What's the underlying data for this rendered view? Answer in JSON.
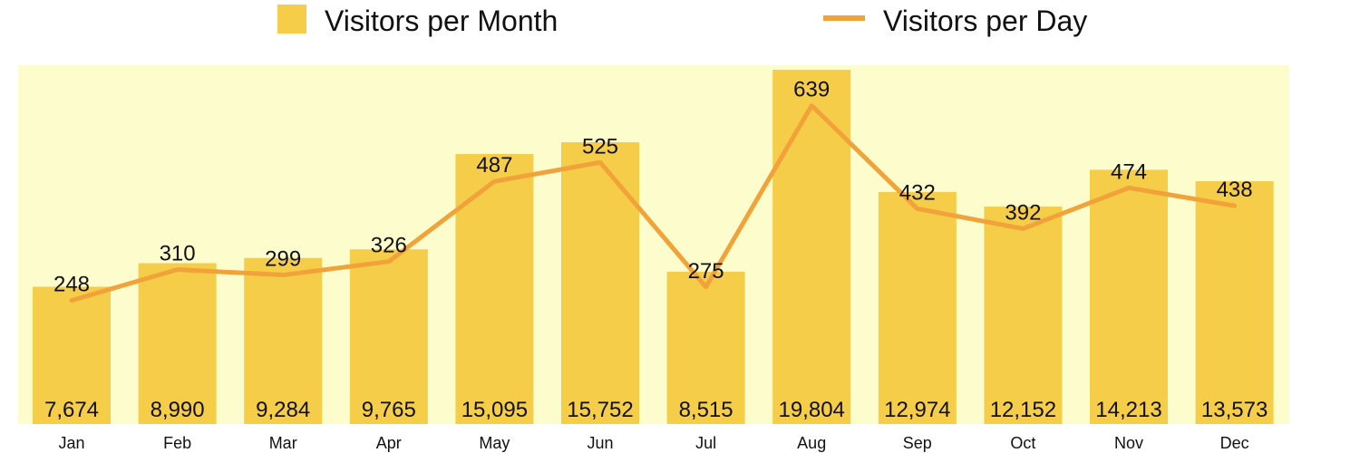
{
  "colors": {
    "plot_background": "#fdfccd",
    "bar": "#f6cd48",
    "line": "#f1a33a",
    "text": "#111111"
  },
  "legend": {
    "placement": "top-center",
    "month_label": "Visitors per Month",
    "day_label": "Visitors per Day"
  },
  "chart_data": {
    "type": "bar",
    "combo": "bar-with-line",
    "categories": [
      "Jan",
      "Feb",
      "Mar",
      "Apr",
      "May",
      "Jun",
      "Jul",
      "Aug",
      "Sep",
      "Oct",
      "Nov",
      "Dec"
    ],
    "series": [
      {
        "name": "Visitors per Month",
        "type": "bar",
        "values": [
          7674,
          8990,
          9284,
          9765,
          15095,
          15752,
          8515,
          19804,
          12974,
          12152,
          14213,
          13573
        ],
        "labels": [
          "7,674",
          "8,990",
          "9,284",
          "9,765",
          "15,095",
          "15,752",
          "8,515",
          "19,804",
          "12,974",
          "12,152",
          "14,213",
          "13,573"
        ]
      },
      {
        "name": "Visitors per Day",
        "type": "line",
        "values": [
          248,
          310,
          299,
          326,
          487,
          525,
          275,
          639,
          432,
          392,
          474,
          438
        ],
        "labels": [
          "248",
          "310",
          "299",
          "326",
          "487",
          "525",
          "275",
          "639",
          "432",
          "392",
          "474",
          "438"
        ]
      }
    ],
    "bar_ylim": [
      0,
      19804
    ],
    "line_ylim": [
      0,
      720
    ],
    "grid": false
  }
}
